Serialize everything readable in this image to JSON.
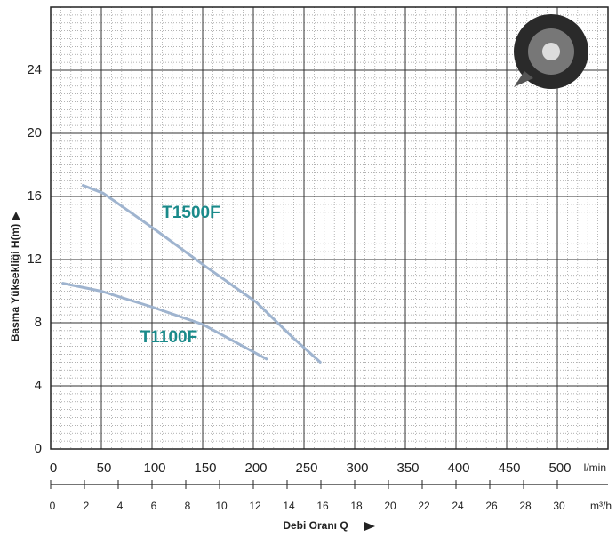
{
  "chart_data": {
    "type": "line",
    "ylabel": "Basma Yüksekliği H(m)",
    "xlabel": "Debi Oranı Q",
    "x_unit": "l/min",
    "x2_unit": "m³/h",
    "xlim": [
      0,
      550
    ],
    "xticks": [
      0,
      50,
      100,
      150,
      200,
      250,
      300,
      350,
      400,
      450,
      500
    ],
    "x2lim": [
      0,
      33
    ],
    "x2ticks": [
      0,
      2,
      4,
      6,
      8,
      10,
      12,
      14,
      16,
      18,
      20,
      22,
      24,
      26,
      28,
      30
    ],
    "ylim": [
      0,
      28
    ],
    "yticks": [
      0,
      4,
      8,
      12,
      16,
      20,
      24
    ],
    "grid": true,
    "label_color": "#1a8a8a",
    "series": [
      {
        "name": "T1500F",
        "color": "#9fb4cf",
        "x": [
          32,
          52,
          103,
          152,
          203,
          240,
          266
        ],
        "values": [
          16.7,
          16.2,
          13.9,
          11.6,
          9.3,
          7.0,
          5.5
        ]
      },
      {
        "name": "T1100F",
        "color": "#9fb4cf",
        "x": [
          12,
          50,
          100,
          150,
          213
        ],
        "values": [
          10.5,
          10.0,
          9.0,
          7.9,
          5.7
        ]
      }
    ]
  }
}
